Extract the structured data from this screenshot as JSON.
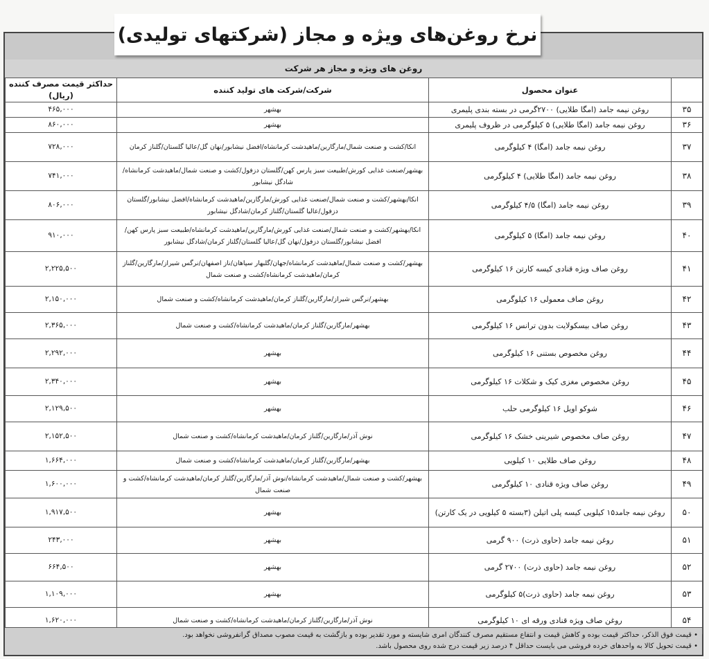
{
  "title": "نرخ روغن‌های ویژه و مجاز (شرکتهای تولیدی)",
  "subheading": "روغن های ویژه و مجاز هر شرکت",
  "columns": {
    "number": "",
    "product": "عنوان محصول",
    "company": "شرکت/شرکت های تولید کننده",
    "price": "حداکثر قیمت مصرف کننده (ریال)"
  },
  "rows": [
    {
      "no": "۳۵",
      "product": "روغن نیمه جامد (امگا طلایی) ۲۷۰۰گرمی در بسته بندی پلیمری",
      "company": "بهشهر",
      "price": "۴۶۵,۰۰۰"
    },
    {
      "no": "۳۶",
      "product": "روغن نیمه جامد (امگا طلایی) ۵ کیلوگرمی در ظروف پلیمری",
      "company": "بهشهر",
      "price": "۸۶۰,۰۰۰"
    },
    {
      "no": "۳۷",
      "product": "روغن نیمه جامد (امگا) ۴ کیلوگرمی",
      "company": "انکا/کشت و صنعت شمال/مارگارین/ماهیدشت کرمانشاه/افضل نیشابور/نهان گل/عالیا گلستان/گلناز کرمان",
      "price": "۷۲۸,۰۰۰"
    },
    {
      "no": "۳۸",
      "product": "روغن نیمه جامد (امگا طلایی) ۴ کیلوگرمی",
      "company": "بهشهر/صنعت غذایی کورش/طبیعت سبز پارس کهن/گلستان دزفول/کشت و صنعت شمال/ماهیدشت کرمانشاه/شادگل نیشابور",
      "price": "۷۴۱,۰۰۰"
    },
    {
      "no": "۳۹",
      "product": "روغن نیمه جامد (امگا) ۴/۵ کیلوگرمی",
      "company": "انکا/بهشهر/کشت و صنعت شمال/صنعت غذایی کورش/مارگارین/ماهیدشت کرمانشاه/افضل نیشابور/گلستان دزفول/عالیا گلستان/گلناز کرمان/شادگل نیشابور",
      "price": "۸۰۶,۰۰۰"
    },
    {
      "no": "۴۰",
      "product": "روغن نیمه جامد (امگا) ۵ کیلوگرمی",
      "company": "انکا/بهشهر/کشت و صنعت شمال/صنعت غذایی کورش/مارگارین/ماهیدشت کرمانشاه/طبیعت سبز پارس کهن/افضل نیشابور/گلستان دزفول/نهان گل/عالیا گلستان/گلناز کرمان/شادگل نیشابور",
      "price": "۹۱۰,۰۰۰"
    },
    {
      "no": "۴۱",
      "product": "روغن صاف ویژه قنادی کیسه کارتن ۱۶ کیلوگرمی",
      "company": "بهشهر/کشت و صنعت شمال/ماهیدشت کرمانشاه/جهان/گلبهار سپاهان/ناز اصفهان/نرگس شیراز/مارگارین/گلناز کرمان/ماهیدشت کرمانشاه/کشت و صنعت شمال",
      "price": "۲,۲۲۵,۵۰۰"
    },
    {
      "no": "۴۲",
      "product": "روغن صاف معمولی ۱۶ کیلوگرمی",
      "company": "بهشهر/نرگس شیراز/مارگارین/گلناز کرمان/ماهیدشت کرمانشاه/کشت و صنعت شمال",
      "price": "۲,۱۵۰,۰۰۰"
    },
    {
      "no": "۴۳",
      "product": "روغن صاف بیسکولایت بدون ترانس ۱۶ کیلوگرمی",
      "company": "بهشهر/مارگارین/گلناز کرمان/ماهیدشت کرمانشاه/کشت و صنعت شمال",
      "price": "۲,۳۶۵,۰۰۰"
    },
    {
      "no": "۴۴",
      "product": "روغن مخصوص بستنی ۱۶ کیلوگرمی",
      "company": "بهشهر",
      "price": "۲,۲۹۲,۰۰۰"
    },
    {
      "no": "۴۵",
      "product": "روغن مخصوص مغزی کیک و شکلات ۱۶ کیلوگرمی",
      "company": "بهشهر",
      "price": "۲,۳۴۰,۰۰۰"
    },
    {
      "no": "۴۶",
      "product": "شوکو اویل ۱۶ کیلوگرمی حلب",
      "company": "بهشهر",
      "price": "۲,۱۲۹,۵۰۰"
    },
    {
      "no": "۴۷",
      "product": "روغن صاف مخصوص شیرینی خشک ۱۶ کیلوگرمی",
      "company": "نوش آذر/مارگارین/گلناز کرمان/ماهیدشت کرمانشاه/کشت و صنعت شمال",
      "price": "۲,۱۵۲,۵۰۰"
    },
    {
      "no": "۴۸",
      "product": "روغن صاف طلایی ۱۰ کیلویی",
      "company": "بهشهر/مارگارین/گلناز کرمان/ماهیدشت کرمانشاه/کشت و صنعت شمال",
      "price": "۱,۶۶۴,۰۰۰"
    },
    {
      "no": "۴۹",
      "product": "روغن صاف ویژه قنادی ۱۰ کیلوگرمی",
      "company": "بهشهر/کشت و صنعت شمال/ماهیدشت کرمانشاه/نوش آذر/مارگارین/گلناز کرمان/ماهیدشت کرمانشاه/کشت و صنعت شمال",
      "price": "۱,۶۰۰,۰۰۰"
    },
    {
      "no": "۵۰",
      "product": "روغن نیمه جامد۱۵ کیلویی کیسه پلی اتیلن (۳بسته ۵ کیلویی در یک کارتن)",
      "company": "بهشهر",
      "price": "۱,۹۱۷,۵۰۰"
    },
    {
      "no": "۵۱",
      "product": "روغن نیمه جامد (حاوی ذرت) ۹۰۰ گرمی",
      "company": "بهشهر",
      "price": "۲۴۳,۰۰۰"
    },
    {
      "no": "۵۲",
      "product": "روغن نیمه جامد (حاوی ذرت) ۲۷۰۰ گرمی",
      "company": "بهشهر",
      "price": "۶۶۴,۵۰۰"
    },
    {
      "no": "۵۳",
      "product": "روغن نیمه جامد (حاوی ذرت)۵ کیلوگرمی",
      "company": "بهشهر",
      "price": "۱,۱۰۹,۰۰۰"
    },
    {
      "no": "۵۴",
      "product": "روغن صاف ویژه قنادی ورقه ای ۱۰ کیلوگرمی",
      "company": "نوش آذر/مارگارین/گلناز کرمان/ماهیدشت کرمانشاه/کشت و صنعت شمال",
      "price": "۱,۶۲۰,۰۰۰"
    }
  ],
  "footnotes": [
    "• قیمت فوق الذکر، حداکثر قیمت بوده و کاهش قیمت و انتفاع مستقیم مصرف کنندگان امری شایسته و مورد تقدیر بوده و بازگشت به قیمت مصوب مصداق گرانفروشی نخواهد بود.",
    "• قیمت تحویل کالا به واحدهای خرده فروشی می بایست حداقل ۴ درصد زیر قیمت درج شده روی محصول باشد."
  ]
}
